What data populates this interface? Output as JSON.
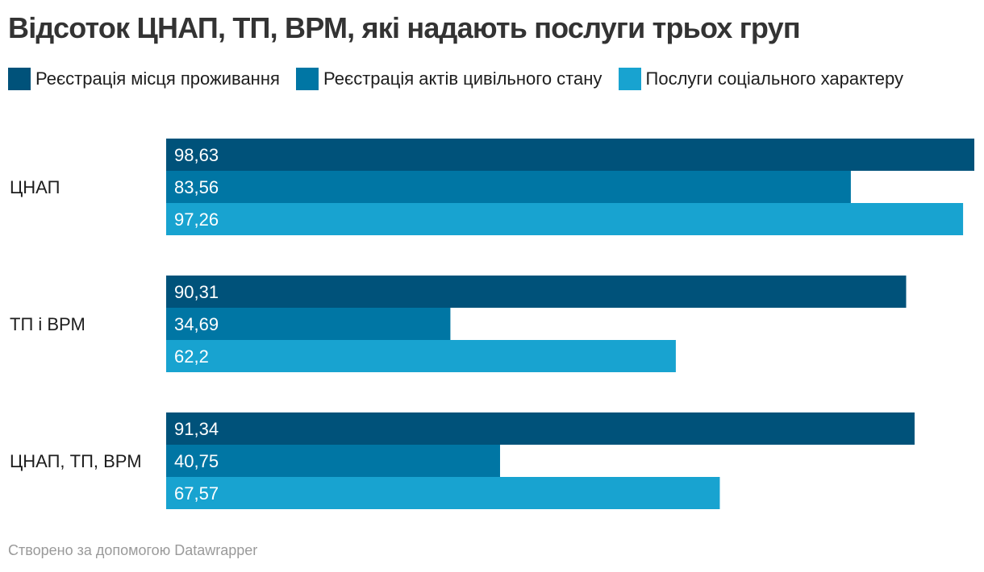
{
  "chart_data": {
    "type": "bar",
    "orientation": "horizontal",
    "title": "Відсоток ЦНАП, ТП, ВРМ, які надають послуги трьох груп",
    "categories": [
      "ЦНАП",
      "ТП і ВРМ",
      "ЦНАП, ТП, ВРМ"
    ],
    "series": [
      {
        "name": "Реєстрація місця проживання",
        "color": "#00527a",
        "values": [
          98.63,
          90.31,
          91.34
        ],
        "labels": [
          "98,63",
          "90,31",
          "91,34"
        ]
      },
      {
        "name": "Реєстрація актів цивільного стану",
        "color": "#0076a4",
        "values": [
          83.56,
          34.69,
          40.75
        ],
        "labels": [
          "83,56",
          "34,69",
          "40,75"
        ]
      },
      {
        "name": "Послуги соціального характеру",
        "color": "#18a3d0",
        "values": [
          97.26,
          62.2,
          67.57
        ],
        "labels": [
          "97,26",
          "62,2",
          "67,57"
        ]
      }
    ],
    "xlim": [
      0,
      98.63
    ],
    "legend_position": "top",
    "grid": false
  },
  "footer": "Створено за допомогою Datawrapper"
}
